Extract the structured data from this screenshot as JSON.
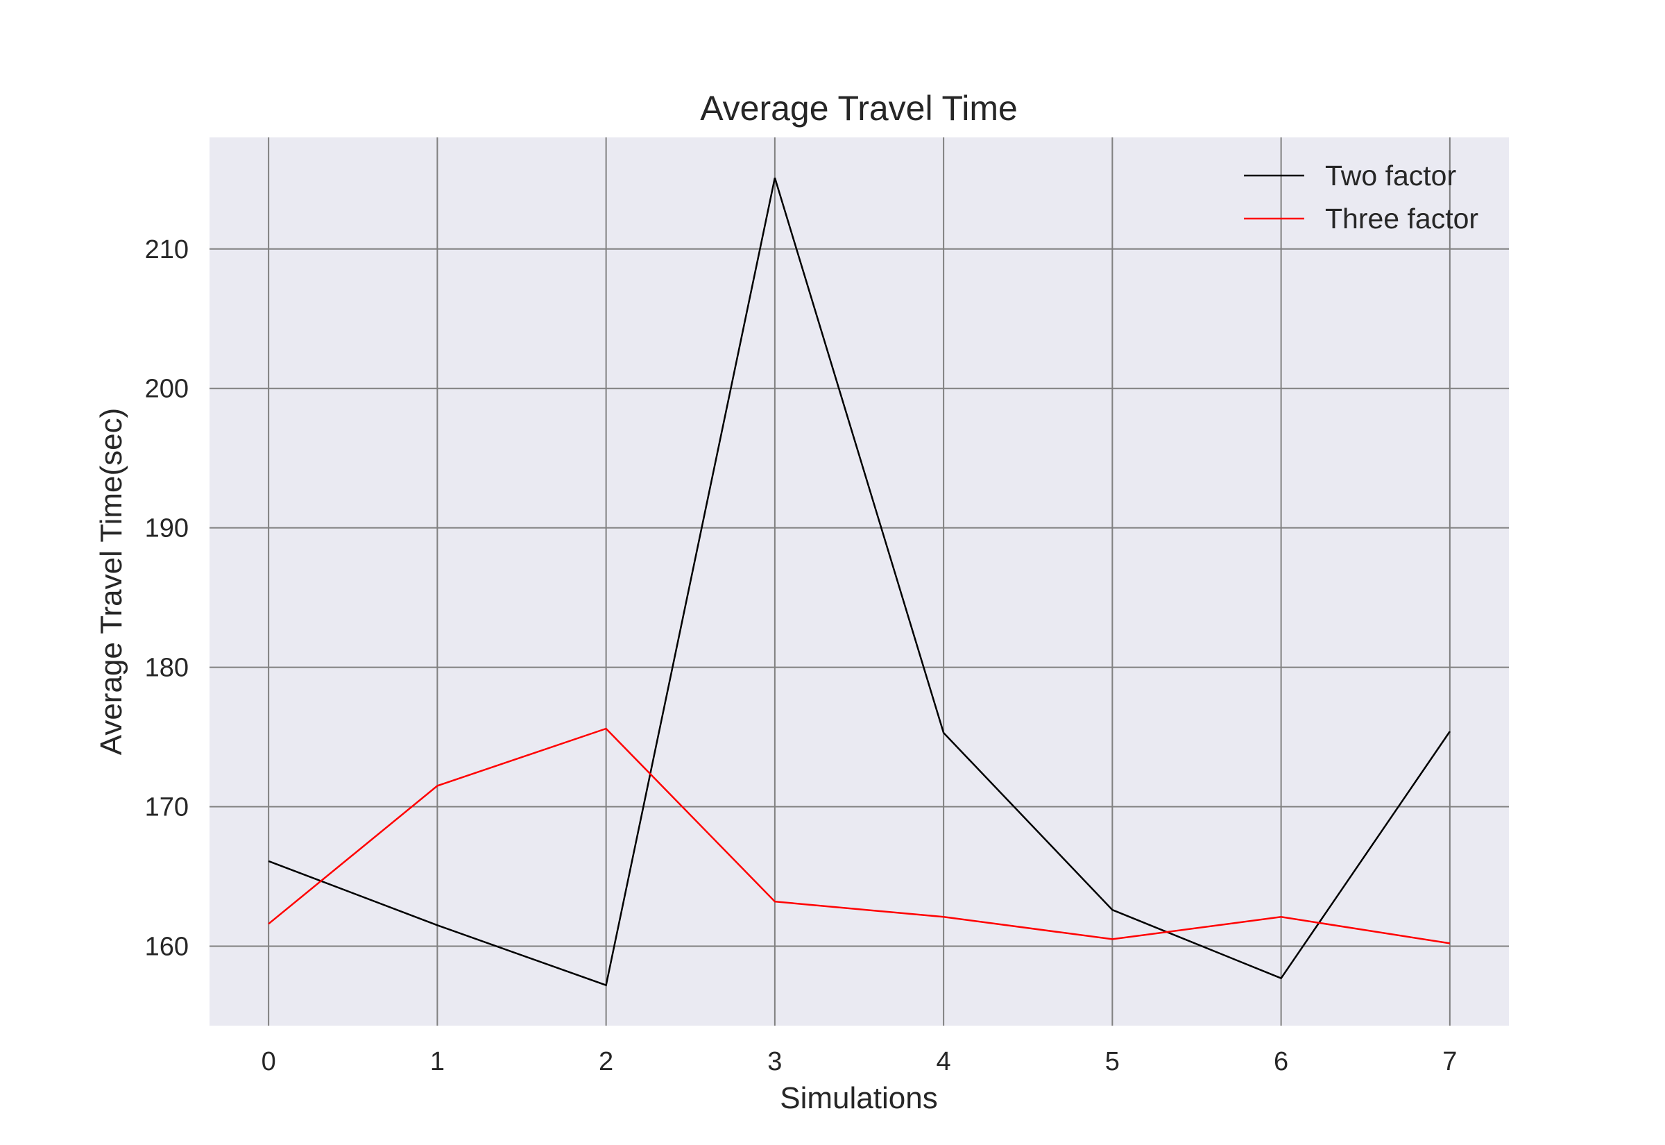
{
  "chart_data": {
    "type": "line",
    "title": "Average Travel Time",
    "xlabel": "Simulations",
    "ylabel": "Average Travel Time(sec)",
    "x": [
      0,
      1,
      2,
      3,
      4,
      5,
      6,
      7
    ],
    "xlim": [
      -0.35,
      7.35
    ],
    "ylim": [
      154.3,
      218
    ],
    "xticks": [
      0,
      1,
      2,
      3,
      4,
      5,
      6,
      7
    ],
    "yticks": [
      160,
      170,
      180,
      190,
      200,
      210
    ],
    "grid": true,
    "legend_position": "top-right",
    "background_color": "#eaeaf2",
    "grid_color": "#808080",
    "series": [
      {
        "name": "Two factor",
        "color": "#000000",
        "values": [
          166.1,
          161.5,
          157.2,
          215.1,
          175.3,
          162.6,
          157.7,
          175.4
        ]
      },
      {
        "name": "Three factor",
        "color": "#ff0000",
        "values": [
          161.6,
          171.5,
          175.6,
          163.2,
          162.1,
          160.5,
          162.1,
          160.2
        ]
      }
    ]
  }
}
